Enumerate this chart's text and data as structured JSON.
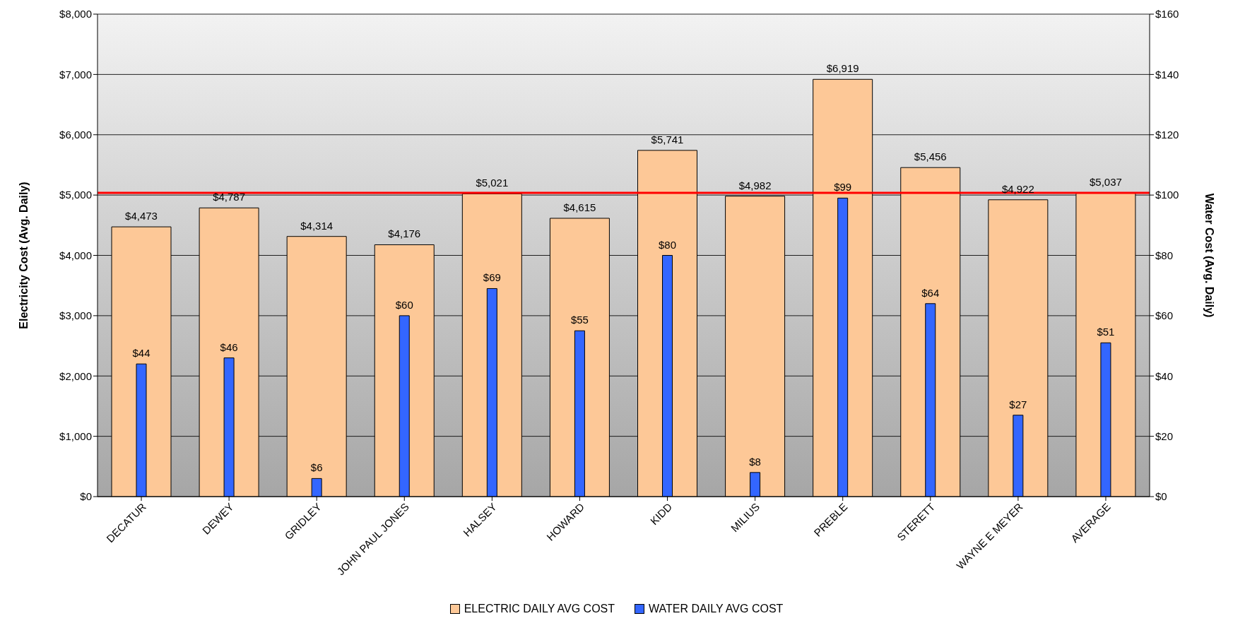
{
  "chart_data": {
    "type": "bar",
    "ylabel": "Electricity Cost (Avg. Daily)",
    "y2label": "Water Cost (Avg. Daily)",
    "categories": [
      "DECATUR",
      "DEWEY",
      "GRIDLEY",
      "JOHN PAUL JONES",
      "HALSEY",
      "HOWARD",
      "KIDD",
      "MILIUS",
      "PREBLE",
      "STERETT",
      "WAYNE E MEYER",
      "AVERAGE"
    ],
    "series": [
      {
        "name": "ELECTRIC DAILY AVG COST",
        "color": "#fdc897",
        "values": [
          4473,
          4787,
          4314,
          4176,
          5021,
          4615,
          5741,
          4982,
          6919,
          5456,
          4922,
          5037
        ],
        "value_labels": [
          "$4,473",
          "$4,787",
          "$4,314",
          "$4,176",
          "$5,021",
          "$4,615",
          "$5,741",
          "$4,982",
          "$6,919",
          "$5,456",
          "$4,922",
          "$5,037"
        ]
      },
      {
        "name": "WATER DAILY AVG COST",
        "color": "#3366ff",
        "axis": "y2",
        "values": [
          44,
          46,
          6,
          60,
          69,
          55,
          80,
          8,
          99,
          64,
          27,
          51
        ],
        "value_labels": [
          "$44",
          "$46",
          "$6",
          "$60",
          "$69",
          "$55",
          "$80",
          "$8",
          "$99",
          "$64",
          "$27",
          "$51"
        ]
      }
    ],
    "ylim": [
      0,
      8000
    ],
    "yticks": [
      {
        "value": 0,
        "label": "$0"
      },
      {
        "value": 1000,
        "label": "$1,000"
      },
      {
        "value": 2000,
        "label": "$2,000"
      },
      {
        "value": 3000,
        "label": "$3,000"
      },
      {
        "value": 4000,
        "label": "$4,000"
      },
      {
        "value": 5000,
        "label": "$5,000"
      },
      {
        "value": 6000,
        "label": "$6,000"
      },
      {
        "value": 7000,
        "label": "$7,000"
      },
      {
        "value": 8000,
        "label": "$8,000"
      }
    ],
    "y2lim": [
      0,
      160
    ],
    "y2ticks": [
      {
        "value": 0,
        "label": "$0"
      },
      {
        "value": 20,
        "label": "$20"
      },
      {
        "value": 40,
        "label": "$40"
      },
      {
        "value": 60,
        "label": "$60"
      },
      {
        "value": 80,
        "label": "$80"
      },
      {
        "value": 100,
        "label": "$100"
      },
      {
        "value": 120,
        "label": "$120"
      },
      {
        "value": 140,
        "label": "$140"
      },
      {
        "value": 160,
        "label": "$160"
      }
    ],
    "ref_lines": [
      {
        "axis": "y",
        "value": 5037,
        "color": "#ff0000"
      }
    ],
    "grid": "y",
    "legend": "bottom"
  }
}
